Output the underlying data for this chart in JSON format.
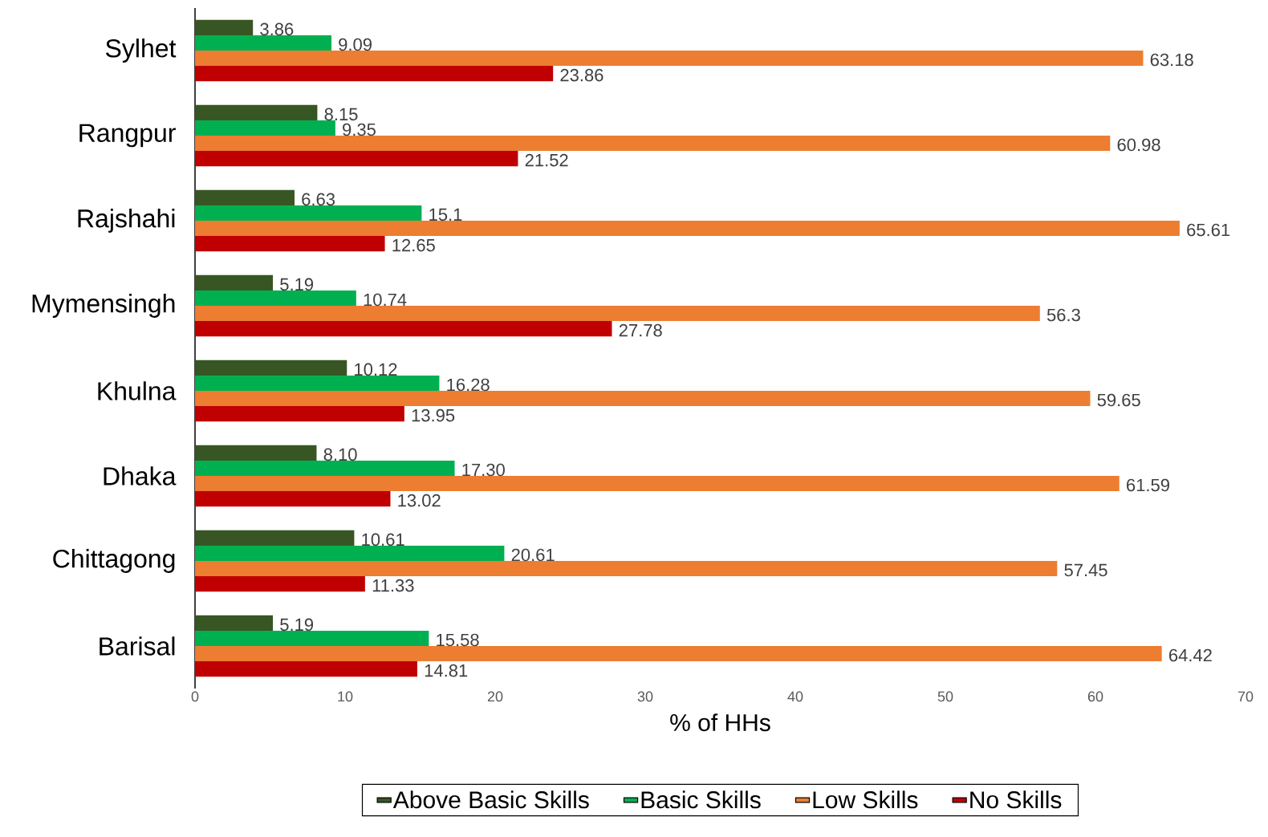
{
  "chart_data": {
    "type": "bar",
    "orientation": "horizontal",
    "categories": [
      "Sylhet",
      "Rangpur",
      "Rajshahi",
      "Mymensingh",
      "Khulna",
      "Dhaka",
      "Chittagong",
      "Barisal"
    ],
    "xlabel": "% of HHs",
    "xlim": [
      0,
      70
    ],
    "xticks": [
      0,
      10,
      20,
      30,
      40,
      50,
      60,
      70
    ],
    "legend": "bottom",
    "series": [
      {
        "name": "Above Basic Skills",
        "color": "#375623",
        "values": [
          3.86,
          8.15,
          6.63,
          5.19,
          10.12,
          8.1,
          10.61,
          5.19
        ],
        "value_labels": [
          "3.86",
          "8.15",
          "6.63",
          "5.19",
          "10.12",
          "8.10",
          "10.61",
          "5.19"
        ]
      },
      {
        "name": "Basic Skills",
        "color": "#00b050",
        "values": [
          9.09,
          9.35,
          15.1,
          10.74,
          16.28,
          17.3,
          20.61,
          15.58
        ],
        "value_labels": [
          "9.09",
          "9.35",
          "15.1",
          "10.74",
          "16.28",
          "17.30",
          "20.61",
          "15.58"
        ]
      },
      {
        "name": "Low Skills",
        "color": "#ed7d31",
        "values": [
          63.18,
          60.98,
          65.61,
          56.3,
          59.65,
          61.59,
          57.45,
          64.42
        ],
        "value_labels": [
          "63.18",
          "60.98",
          "65.61",
          "56.3",
          "59.65",
          "61.59",
          "57.45",
          "64.42"
        ]
      },
      {
        "name": "No Skills",
        "color": "#c00000",
        "values": [
          23.86,
          21.52,
          12.65,
          27.78,
          13.95,
          13.02,
          11.33,
          14.81
        ],
        "value_labels": [
          "23.86",
          "21.52",
          "12.65",
          "27.78",
          "13.95",
          "13.02",
          "11.33",
          "14.81"
        ]
      }
    ]
  }
}
